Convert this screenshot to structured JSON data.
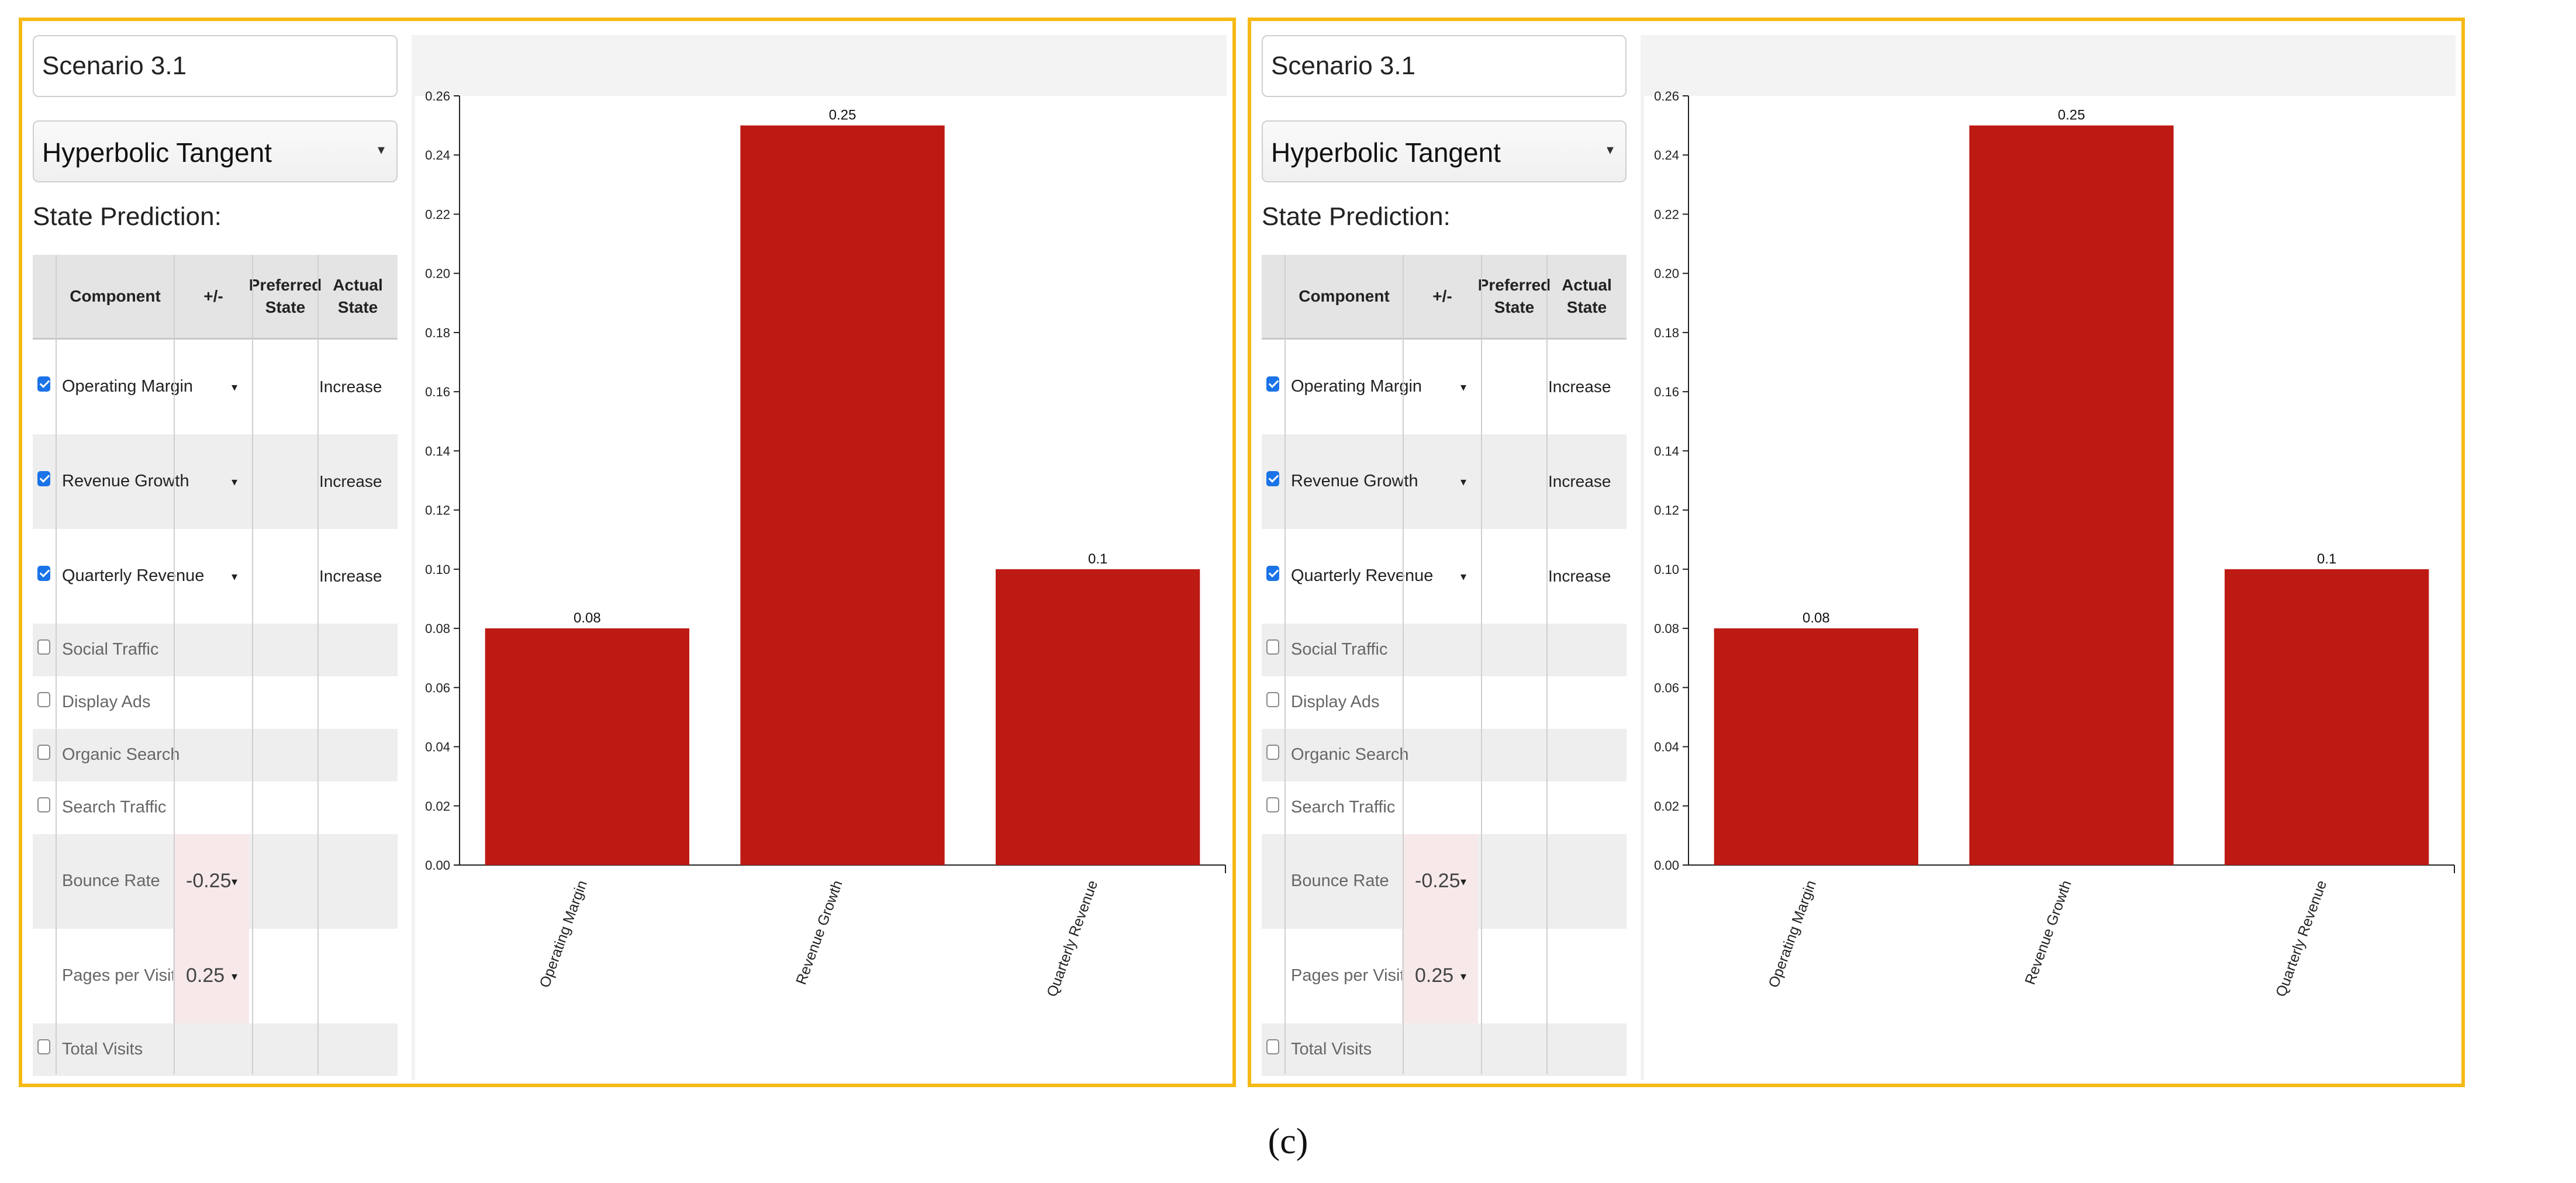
{
  "caption": "(c)",
  "panels": [
    {
      "scenario": "Scenario 3.1",
      "function_select": "Hyperbolic Tangent",
      "state_prediction_label": "State Prediction:",
      "table": {
        "headers": {
          "component": "Component",
          "plusminus": "+/-",
          "preferred": "Preferred State",
          "actual": "Actual State"
        },
        "rows": [
          {
            "component": "Operating Margin",
            "checked": true,
            "plusminus": "",
            "has_dropdown": true,
            "preferred": "",
            "actual": "Increase"
          },
          {
            "component": "Revenue Growth",
            "checked": true,
            "plusminus": "",
            "has_dropdown": true,
            "preferred": "",
            "actual": "Increase"
          },
          {
            "component": "Quarterly Revenue",
            "checked": true,
            "plusminus": "",
            "has_dropdown": true,
            "preferred": "",
            "actual": "Increase"
          },
          {
            "component": "Social Traffic",
            "checked": false,
            "plusminus": "",
            "has_dropdown": false,
            "preferred": "",
            "actual": ""
          },
          {
            "component": "Display Ads",
            "checked": false,
            "plusminus": "",
            "has_dropdown": false,
            "preferred": "",
            "actual": ""
          },
          {
            "component": "Organic Search",
            "checked": false,
            "plusminus": "",
            "has_dropdown": false,
            "preferred": "",
            "actual": ""
          },
          {
            "component": "Search Traffic",
            "checked": false,
            "plusminus": "",
            "has_dropdown": false,
            "preferred": "",
            "actual": ""
          },
          {
            "component": "Bounce Rate",
            "checked": null,
            "plusminus": "-0.25",
            "has_dropdown": true,
            "preferred": "",
            "actual": ""
          },
          {
            "component": "Pages per Visit",
            "checked": null,
            "plusminus": "0.25",
            "has_dropdown": true,
            "preferred": "",
            "actual": ""
          },
          {
            "component": "Total Visits",
            "checked": false,
            "plusminus": "",
            "has_dropdown": false,
            "preferred": "",
            "actual": ""
          }
        ]
      },
      "chart_data": {
        "type": "bar",
        "categories": [
          "Operating Margin",
          "Revenue Growth",
          "Quarterly Revenue"
        ],
        "values": [
          0.08,
          0.25,
          0.1
        ],
        "value_labels": [
          "0.08",
          "0.25",
          "0.1"
        ],
        "ylim": [
          0,
          0.26
        ],
        "yticks": [
          "0.00",
          "0.02",
          "0.04",
          "0.06",
          "0.08",
          "0.10",
          "0.12",
          "0.14",
          "0.16",
          "0.18",
          "0.20",
          "0.22",
          "0.24",
          "0.26"
        ],
        "bar_color": "#be1a14",
        "grid": false,
        "title": "",
        "xlabel": "",
        "ylabel": ""
      }
    },
    {
      "scenario": "Scenario 3.1",
      "function_select": "Hyperbolic Tangent",
      "state_prediction_label": "State Prediction:",
      "table": {
        "headers": {
          "component": "Component",
          "plusminus": "+/-",
          "preferred": "Preferred State",
          "actual": "Actual State"
        },
        "rows": [
          {
            "component": "Operating Margin",
            "checked": true,
            "plusminus": "",
            "has_dropdown": true,
            "preferred": "",
            "actual": "Increase"
          },
          {
            "component": "Revenue Growth",
            "checked": true,
            "plusminus": "",
            "has_dropdown": true,
            "preferred": "",
            "actual": "Increase"
          },
          {
            "component": "Quarterly Revenue",
            "checked": true,
            "plusminus": "",
            "has_dropdown": true,
            "preferred": "",
            "actual": "Increase"
          },
          {
            "component": "Social Traffic",
            "checked": false,
            "plusminus": "",
            "has_dropdown": false,
            "preferred": "",
            "actual": ""
          },
          {
            "component": "Display Ads",
            "checked": false,
            "plusminus": "",
            "has_dropdown": false,
            "preferred": "",
            "actual": ""
          },
          {
            "component": "Organic Search",
            "checked": false,
            "plusminus": "",
            "has_dropdown": false,
            "preferred": "",
            "actual": ""
          },
          {
            "component": "Search Traffic",
            "checked": false,
            "plusminus": "",
            "has_dropdown": false,
            "preferred": "",
            "actual": ""
          },
          {
            "component": "Bounce Rate",
            "checked": null,
            "plusminus": "-0.25",
            "has_dropdown": true,
            "preferred": "",
            "actual": ""
          },
          {
            "component": "Pages per Visit",
            "checked": null,
            "plusminus": "0.25",
            "has_dropdown": true,
            "preferred": "",
            "actual": ""
          },
          {
            "component": "Total Visits",
            "checked": false,
            "plusminus": "",
            "has_dropdown": false,
            "preferred": "",
            "actual": ""
          }
        ]
      },
      "chart_data": {
        "type": "bar",
        "categories": [
          "Operating Margin",
          "Revenue Growth",
          "Quarterly Revenue"
        ],
        "values": [
          0.08,
          0.25,
          0.1
        ],
        "value_labels": [
          "0.08",
          "0.25",
          "0.1"
        ],
        "ylim": [
          0,
          0.26
        ],
        "yticks": [
          "0.00",
          "0.02",
          "0.04",
          "0.06",
          "0.08",
          "0.10",
          "0.12",
          "0.14",
          "0.16",
          "0.18",
          "0.20",
          "0.22",
          "0.24",
          "0.26"
        ],
        "bar_color": "#be1a14",
        "grid": false,
        "title": "",
        "xlabel": "",
        "ylabel": ""
      }
    }
  ]
}
